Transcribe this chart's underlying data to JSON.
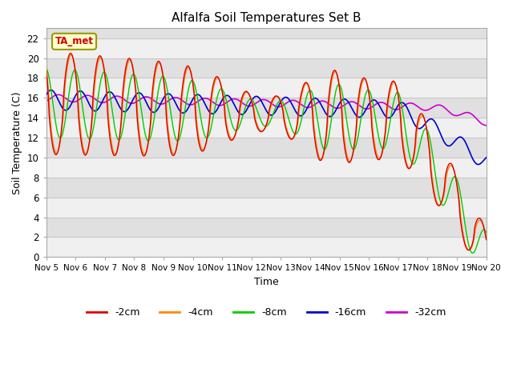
{
  "title": "Alfalfa Soil Temperatures Set B",
  "xlabel": "Time",
  "ylabel": "Soil Temperature (C)",
  "ylim": [
    0,
    23
  ],
  "yticks": [
    0,
    2,
    4,
    6,
    8,
    10,
    12,
    14,
    16,
    18,
    20,
    22
  ],
  "x_labels": [
    "Nov 5",
    "Nov 6",
    "Nov 7",
    "Nov 8",
    "Nov 9",
    "Nov 10",
    "Nov 11",
    "Nov 12",
    "Nov 13",
    "Nov 14",
    "Nov 15",
    "Nov 16",
    "Nov 17",
    "Nov 18",
    "Nov 19",
    "Nov 20"
  ],
  "annotation_text": "TA_met",
  "annotation_color": "#cc0000",
  "annotation_bg": "#ffffcc",
  "series": [
    {
      "label": "-2cm",
      "color": "#dd0000"
    },
    {
      "label": "-4cm",
      "color": "#ff8800"
    },
    {
      "label": "-8cm",
      "color": "#00cc00"
    },
    {
      "label": "-16cm",
      "color": "#0000cc"
    },
    {
      "label": "-32cm",
      "color": "#cc00cc"
    }
  ]
}
